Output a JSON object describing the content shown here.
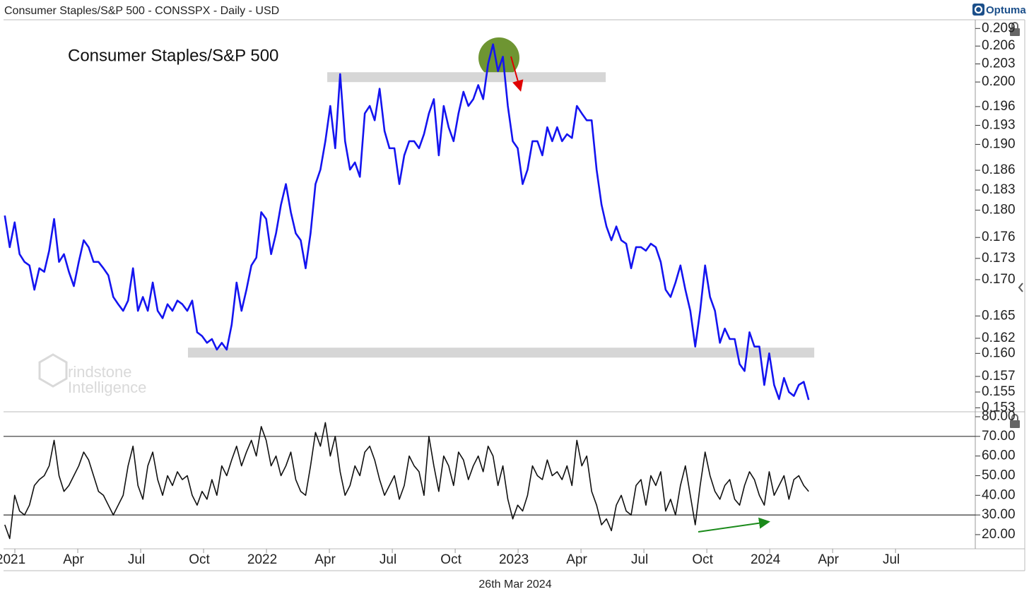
{
  "header": {
    "title": "Consumer Staples/S&P 500 - CONSSPX - Daily - USD",
    "brand": "Optuma"
  },
  "footer": {
    "date": "26th Mar 2024"
  },
  "watermark": [
    "rindstone",
    "Intelligence"
  ],
  "chart_data": {
    "type": "line",
    "title": "Consumer Staples/S&P 500",
    "x": [
      2020.96,
      2020.9796,
      2020.9992,
      2021.0188,
      2021.0384,
      2021.058,
      2021.0776,
      2021.0972,
      2021.1168,
      2021.1364,
      2021.156,
      2021.1756,
      2021.1952,
      2021.2148,
      2021.2344,
      2021.254,
      2021.2736,
      2021.2932,
      2021.3128,
      2021.3324,
      2021.352,
      2021.3716,
      2021.3912,
      2021.4108,
      2021.4304,
      2021.45,
      2021.4696,
      2021.4892,
      2021.5088,
      2021.5284,
      2021.548,
      2021.5676,
      2021.5872,
      2021.6068,
      2021.6264,
      2021.646,
      2021.6656,
      2021.6852,
      2021.7048,
      2021.7244,
      2021.744,
      2021.7636,
      2021.7832,
      2021.8028,
      2021.8224,
      2021.842,
      2021.8616,
      2021.8812,
      2021.9008,
      2021.9204,
      2021.94,
      2021.9596,
      2021.9792,
      2021.9988,
      2022.0184,
      2022.038,
      2022.0576,
      2022.0772,
      2022.0968,
      2022.1164,
      2022.136,
      2022.1556,
      2022.1752,
      2022.1948,
      2022.2144,
      2022.234,
      2022.2536,
      2022.2732,
      2022.2928,
      2022.3124,
      2022.332,
      2022.3516,
      2022.3712,
      2022.3908,
      2022.4104,
      2022.43,
      2022.4496,
      2022.4692,
      2022.4888,
      2022.5084,
      2022.528,
      2022.5476,
      2022.5672,
      2022.5868,
      2022.6064,
      2022.626,
      2022.6456,
      2022.6652,
      2022.6848,
      2022.7044,
      2022.724,
      2022.7436,
      2022.7632,
      2022.7828,
      2022.8024,
      2022.822,
      2022.8416,
      2022.8612,
      2022.8808,
      2022.9004,
      2022.92,
      2022.9396,
      2022.9592,
      2022.9788,
      2022.9984,
      2023.018,
      2023.0376,
      2023.0572,
      2023.0768,
      2023.0964,
      2023.116,
      2023.1356,
      2023.1552,
      2023.1748,
      2023.1944,
      2023.214,
      2023.2336,
      2023.2532,
      2023.2728,
      2023.2924,
      2023.312,
      2023.3316,
      2023.3512,
      2023.3708,
      2023.3904,
      2023.41,
      2023.4296,
      2023.4492,
      2023.4688,
      2023.4884,
      2023.508,
      2023.5276,
      2023.5472,
      2023.5668,
      2023.5864,
      2023.606,
      2023.6256,
      2023.6452,
      2023.6648,
      2023.6844,
      2023.704,
      2023.7236,
      2023.7432,
      2023.7628,
      2023.7824,
      2023.802,
      2023.8216,
      2023.8412,
      2023.8608,
      2023.8804,
      2023.9,
      2023.9196,
      2023.9392,
      2023.9588,
      2023.9784,
      2023.998,
      2024.0176,
      2024.0372,
      2024.0568,
      2024.0764,
      2024.096,
      2024.1156,
      2024.1352,
      2024.1548
    ],
    "series": [
      {
        "color": "#1414f0",
        "values": [
          0.1792,
          0.1746,
          0.1782,
          0.1736,
          0.1725,
          0.172,
          0.1686,
          0.1716,
          0.1711,
          0.1741,
          0.1787,
          0.1725,
          0.1736,
          0.1711,
          0.1691,
          0.1725,
          0.1756,
          0.1746,
          0.1725,
          0.1725,
          0.1716,
          0.1706,
          0.1676,
          0.1666,
          0.1657,
          0.1671,
          0.1716,
          0.1657,
          0.1676,
          0.1657,
          0.1696,
          0.1657,
          0.1647,
          0.1666,
          0.1657,
          0.1671,
          0.1666,
          0.1657,
          0.1671,
          0.1628,
          0.1623,
          0.1614,
          0.1619,
          0.1605,
          0.1614,
          0.1605,
          0.1638,
          0.1696,
          0.1657,
          0.1686,
          0.172,
          0.1731,
          0.1797,
          0.1787,
          0.1736,
          0.1766,
          0.1808,
          0.1839,
          0.1797,
          0.1766,
          0.1756,
          0.1716,
          0.1766,
          0.1839,
          0.1861,
          0.1905,
          0.1961,
          0.1894,
          0.2013,
          0.1905,
          0.1861,
          0.1872,
          0.185,
          0.1949,
          0.1961,
          0.1938,
          0.1989,
          0.1921,
          0.1894,
          0.1894,
          0.1839,
          0.1883,
          0.1905,
          0.1905,
          0.1894,
          0.1916,
          0.1949,
          0.1972,
          0.1883,
          0.1961,
          0.1927,
          0.1905,
          0.1949,
          0.1984,
          0.1961,
          0.1972,
          0.1995,
          0.1972,
          0.203,
          0.2063,
          0.2018,
          0.2042,
          0.1961,
          0.1905,
          0.1894,
          0.1839,
          0.1861,
          0.1905,
          0.1905,
          0.1883,
          0.1927,
          0.1905,
          0.1927,
          0.1905,
          0.1916,
          0.191,
          0.1961,
          0.1949,
          0.1938,
          0.1938,
          0.1861,
          0.1808,
          0.1776,
          0.1756,
          0.1776,
          0.1756,
          0.1751,
          0.1716,
          0.1746,
          0.1746,
          0.1741,
          0.1751,
          0.1746,
          0.1725,
          0.1686,
          0.1676,
          0.1696,
          0.172,
          0.1686,
          0.1657,
          0.1609,
          0.1657,
          0.172,
          0.1676,
          0.1657,
          0.1614,
          0.1633,
          0.1619,
          0.1619,
          0.1586,
          0.1577,
          0.1628,
          0.1609,
          0.1609,
          0.1559,
          0.16,
          0.1559,
          0.1541,
          0.1568,
          0.155,
          0.1545,
          0.1559,
          0.1563,
          0.154
        ]
      },
      {
        "color": "#111111",
        "axis": "y2",
        "values": [
          25,
          18,
          40,
          32,
          30,
          35,
          45,
          48,
          50,
          55,
          68,
          50,
          42,
          45,
          50,
          55,
          62,
          58,
          50,
          42,
          40,
          35,
          30,
          35,
          40,
          55,
          65,
          45,
          38,
          55,
          62,
          48,
          40,
          50,
          45,
          52,
          48,
          50,
          40,
          35,
          42,
          38,
          48,
          40,
          55,
          50,
          58,
          65,
          55,
          62,
          68,
          60,
          75,
          68,
          55,
          60,
          50,
          55,
          62,
          48,
          42,
          40,
          55,
          72,
          65,
          77,
          60,
          70,
          52,
          40,
          45,
          55,
          50,
          62,
          65,
          58,
          48,
          40,
          45,
          50,
          38,
          45,
          60,
          55,
          52,
          40,
          70,
          55,
          42,
          60,
          55,
          45,
          62,
          58,
          48,
          55,
          60,
          52,
          65,
          60,
          45,
          55,
          38,
          28,
          35,
          32,
          40,
          55,
          50,
          48,
          58,
          50,
          52,
          48,
          55,
          45,
          68,
          55,
          60,
          42,
          35,
          25,
          28,
          22,
          35,
          40,
          32,
          30,
          45,
          48,
          35,
          50,
          45,
          52,
          32,
          38,
          30,
          45,
          55,
          40,
          25,
          45,
          62,
          50,
          42,
          38,
          45,
          48,
          38,
          35,
          45,
          52,
          48,
          40,
          35,
          52,
          40,
          45,
          50,
          38,
          48,
          50,
          45,
          42
        ]
      }
    ],
    "xlim": [
      2020.955,
      2024.817
    ],
    "xticks": [
      {
        "value": 2021,
        "label": "2021"
      },
      {
        "value": 2021.25,
        "label": "Apr"
      },
      {
        "value": 2021.5,
        "label": "Jul"
      },
      {
        "value": 2021.75,
        "label": "Oct"
      },
      {
        "value": 2022,
        "label": "2022"
      },
      {
        "value": 2022.25,
        "label": "Apr"
      },
      {
        "value": 2022.5,
        "label": "Jul"
      },
      {
        "value": 2022.75,
        "label": "Oct"
      },
      {
        "value": 2023,
        "label": "2023"
      },
      {
        "value": 2023.25,
        "label": "Apr"
      },
      {
        "value": 2023.5,
        "label": "Jul"
      },
      {
        "value": 2023.75,
        "label": "Oct"
      },
      {
        "value": 2024,
        "label": "2024"
      },
      {
        "value": 2024.25,
        "label": "Apr"
      },
      {
        "value": 2024.5,
        "label": "Jul"
      }
    ],
    "ylog": true,
    "ylim": [
      0.1525,
      0.2105
    ],
    "yticks": [
      0.209,
      0.206,
      0.203,
      {
        "value": 0.2,
        "label": "0.200"
      },
      0.196,
      0.193,
      {
        "value": 0.19,
        "label": "0.190"
      },
      0.186,
      0.183,
      {
        "value": 0.18,
        "label": "0.180"
      },
      0.176,
      0.173,
      {
        "value": 0.17,
        "label": "0.170"
      },
      0.165,
      0.162,
      {
        "value": 0.16,
        "label": "0.160"
      },
      0.157,
      0.155,
      0.153
    ],
    "y2lim": [
      15.3,
      81.8
    ],
    "y2ticks": [
      {
        "value": 80,
        "label": "80.00"
      },
      {
        "value": 70,
        "label": "70.00"
      },
      {
        "value": 60,
        "label": "60.00"
      },
      {
        "value": 50,
        "label": "50.00"
      },
      {
        "value": 40,
        "label": "40.00"
      },
      {
        "value": 30,
        "label": "30.00"
      },
      {
        "value": 20,
        "label": "20.00"
      }
    ],
    "y2_reference_lines": [
      70,
      30
    ],
    "levels": [
      {
        "value": 0.2008,
        "x": [
          2022.2416,
          2023.3483
        ]
      },
      {
        "value": 0.1601,
        "x": [
          2021.688,
          2024.177
        ]
      }
    ]
  }
}
